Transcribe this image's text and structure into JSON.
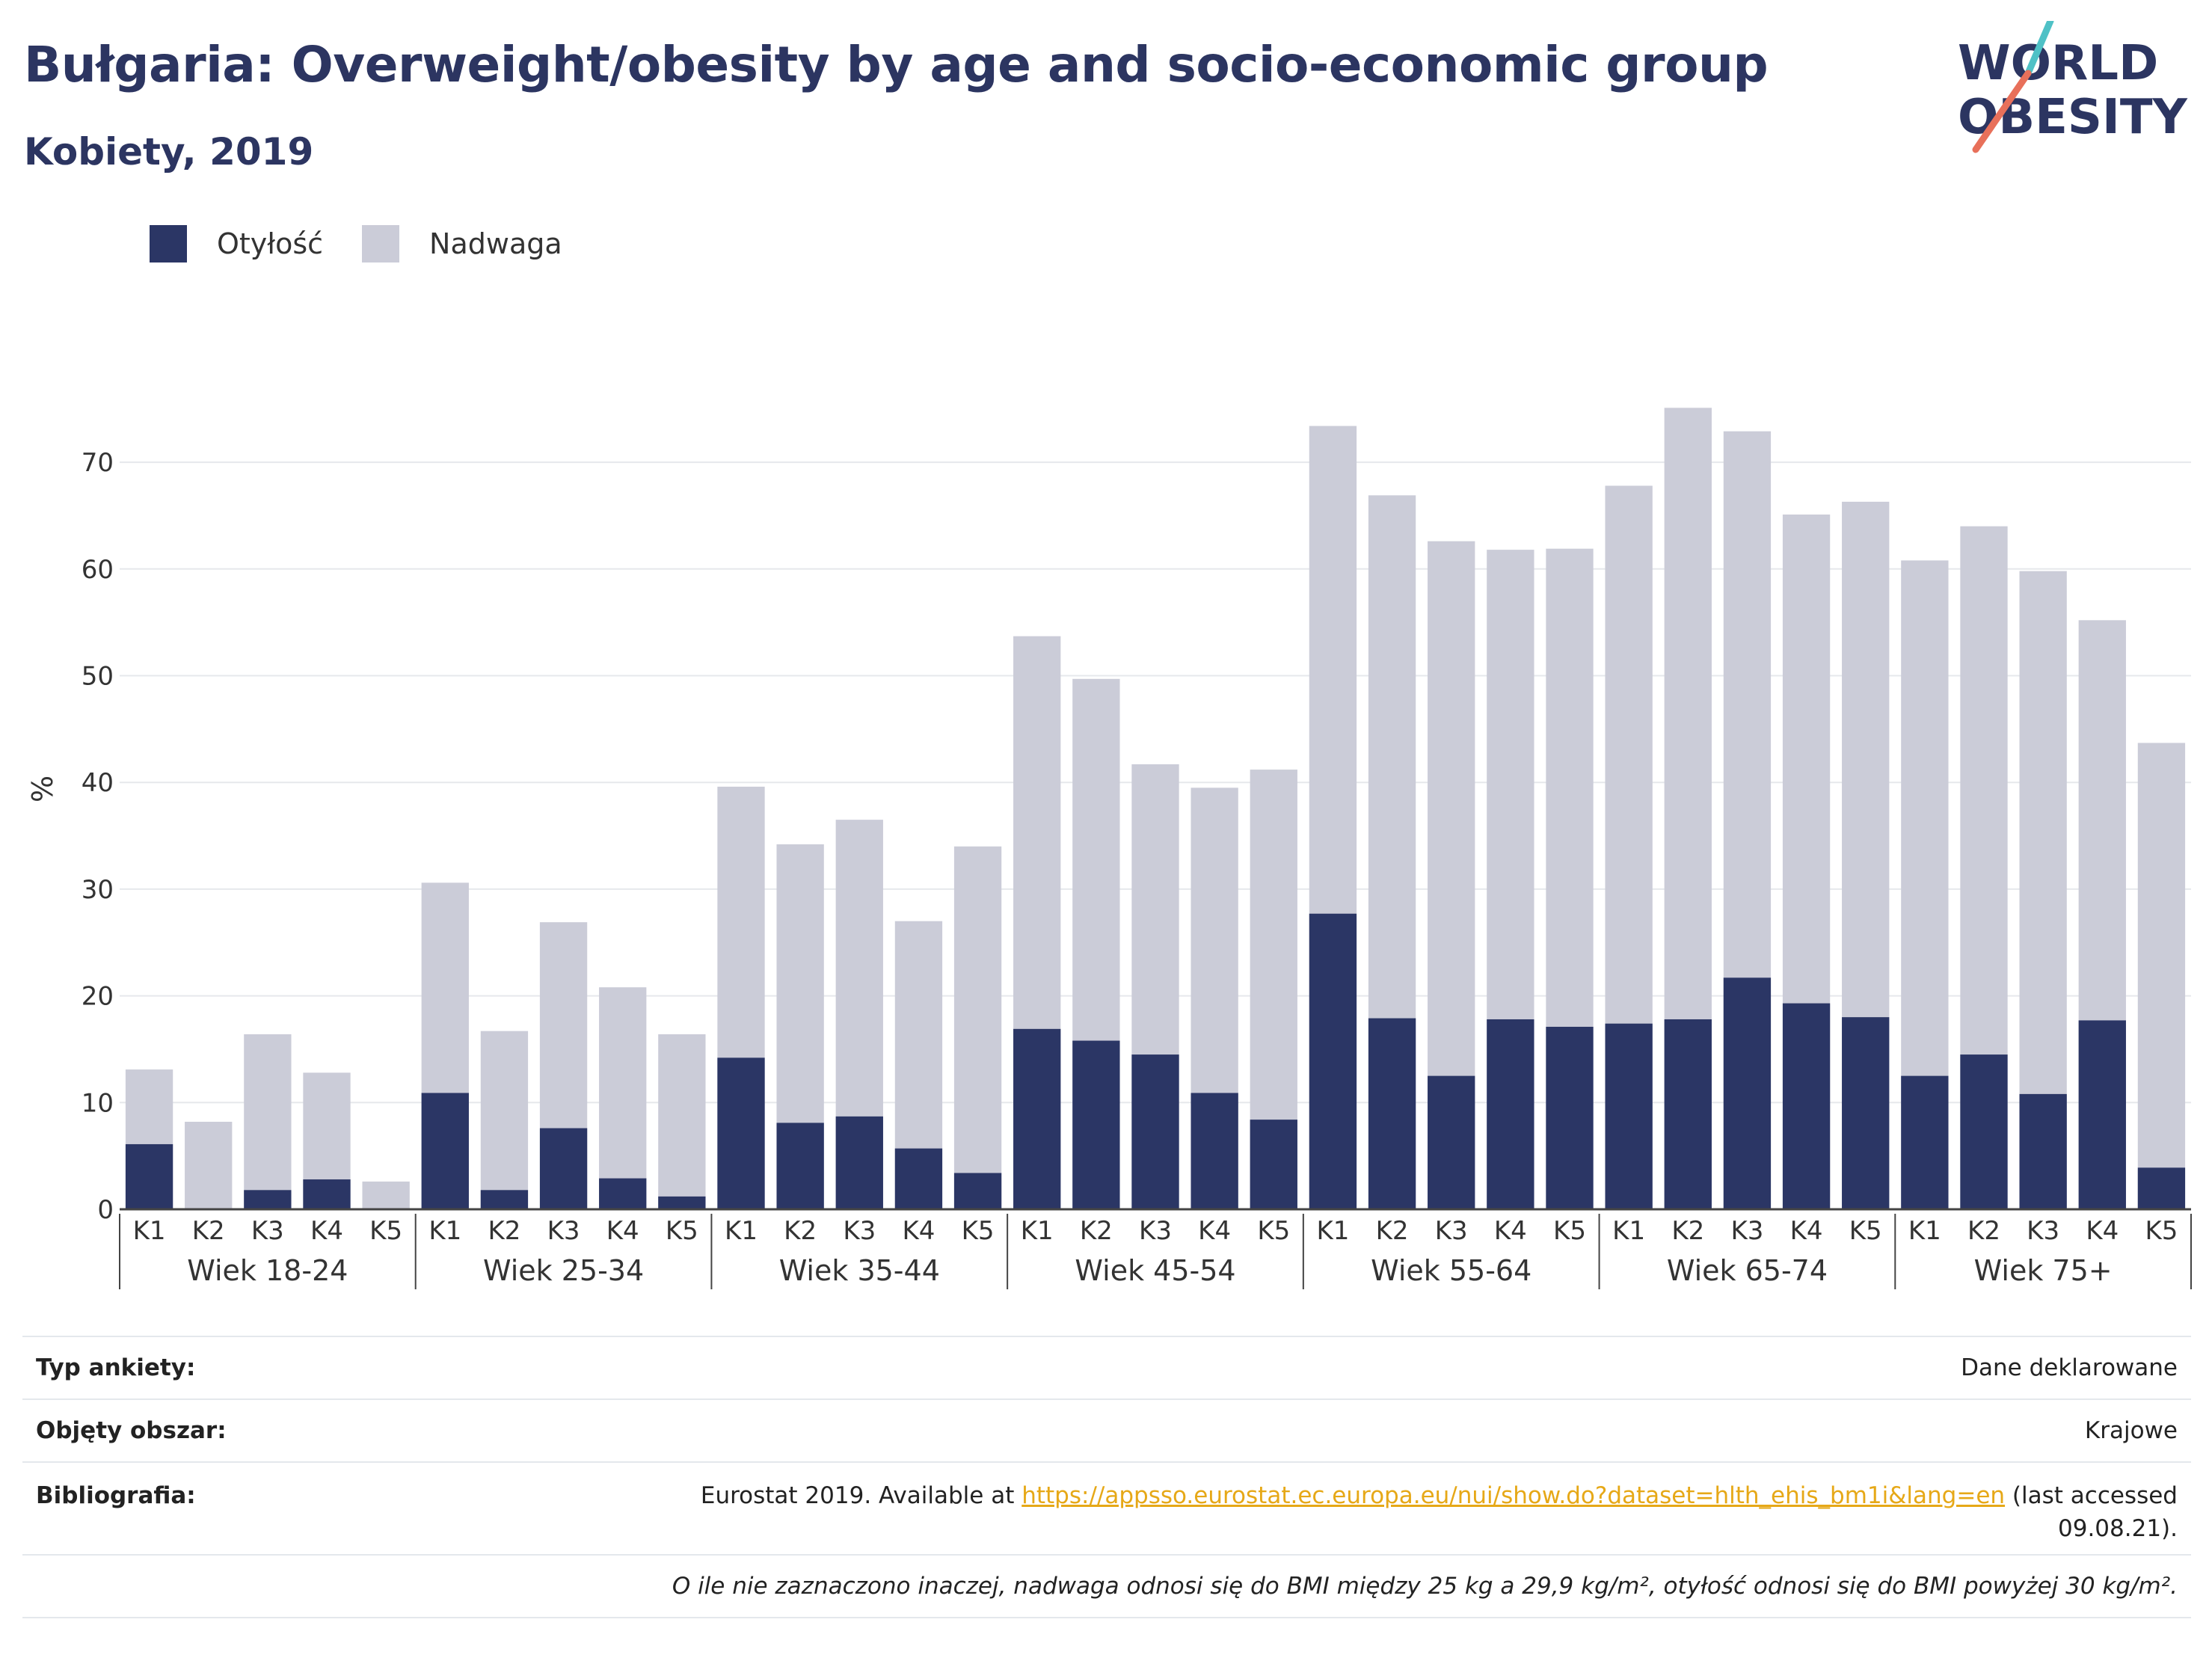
{
  "header": {
    "title": "Bułgaria: Overweight/obesity by age and socio-economic group",
    "subtitle": "Kobiety, 2019",
    "logo_text_line1": "WORLD",
    "logo_text_line2": "OBESITY"
  },
  "colors": {
    "obesity": "#2b3665",
    "overweight": "#cbccd8",
    "text_dark": "#2c3561",
    "link": "#e6a817",
    "logo_slash_top": "#4fc1c6",
    "logo_slash_bottom": "#e8705a"
  },
  "legend": [
    {
      "label": "Otyłość",
      "color": "#2b3665"
    },
    {
      "label": "Nadwaga",
      "color": "#cbccd8"
    }
  ],
  "chart_data": {
    "type": "bar",
    "stacked": false,
    "overlay": true,
    "ylabel": "%",
    "ylim": [
      0,
      80
    ],
    "yticks": [
      0,
      10,
      20,
      30,
      40,
      50,
      60,
      70
    ],
    "grid": true,
    "legend_position": "top-left",
    "groups": [
      "Wiek 18-24",
      "Wiek 25-34",
      "Wiek 35-44",
      "Wiek 45-54",
      "Wiek 55-64",
      "Wiek 65-74",
      "Wiek 75+"
    ],
    "subcategories": [
      "K1",
      "K2",
      "K3",
      "K4",
      "K5"
    ],
    "series": [
      {
        "name": "Nadwaga",
        "values": [
          13.1,
          8.2,
          16.4,
          12.8,
          2.6,
          30.6,
          16.7,
          26.9,
          20.8,
          16.4,
          39.6,
          34.2,
          36.5,
          27.0,
          34.0,
          53.7,
          49.7,
          41.7,
          39.5,
          41.2,
          73.4,
          66.9,
          62.6,
          61.8,
          61.9,
          67.8,
          75.1,
          72.9,
          65.1,
          66.3,
          60.8,
          64.0,
          59.8,
          55.2,
          43.7
        ]
      },
      {
        "name": "Otyłość",
        "values": [
          6.1,
          0,
          1.8,
          2.8,
          0,
          10.9,
          1.8,
          7.6,
          2.9,
          1.2,
          14.2,
          8.1,
          8.7,
          5.7,
          3.4,
          16.9,
          15.8,
          14.5,
          10.9,
          8.4,
          27.7,
          17.9,
          12.5,
          17.8,
          17.1,
          17.4,
          17.8,
          21.7,
          19.3,
          18.0,
          12.5,
          14.5,
          10.8,
          17.7,
          3.9
        ]
      }
    ]
  },
  "info": {
    "survey_type_label": "Typ ankiety:",
    "survey_type_value": "Dane deklarowane",
    "area_label": "Objęty obszar:",
    "area_value": "Krajowe",
    "bibliography_label": "Bibliografia:",
    "bibliography_prefix": "Eurostat 2019. Available at ",
    "bibliography_link": "https://appsso.eurostat.ec.europa.eu/nui/show.do?dataset=hlth_ehis_bm1i&lang=en",
    "bibliography_suffix_line1": " (last accessed",
    "bibliography_suffix_line2": "09.08.21).",
    "note": "O ile nie zaznaczono inaczej, nadwaga odnosi się do BMI między 25 kg a 29,9 kg/m², otyłość odnosi się do BMI powyżej 30 kg/m²."
  }
}
